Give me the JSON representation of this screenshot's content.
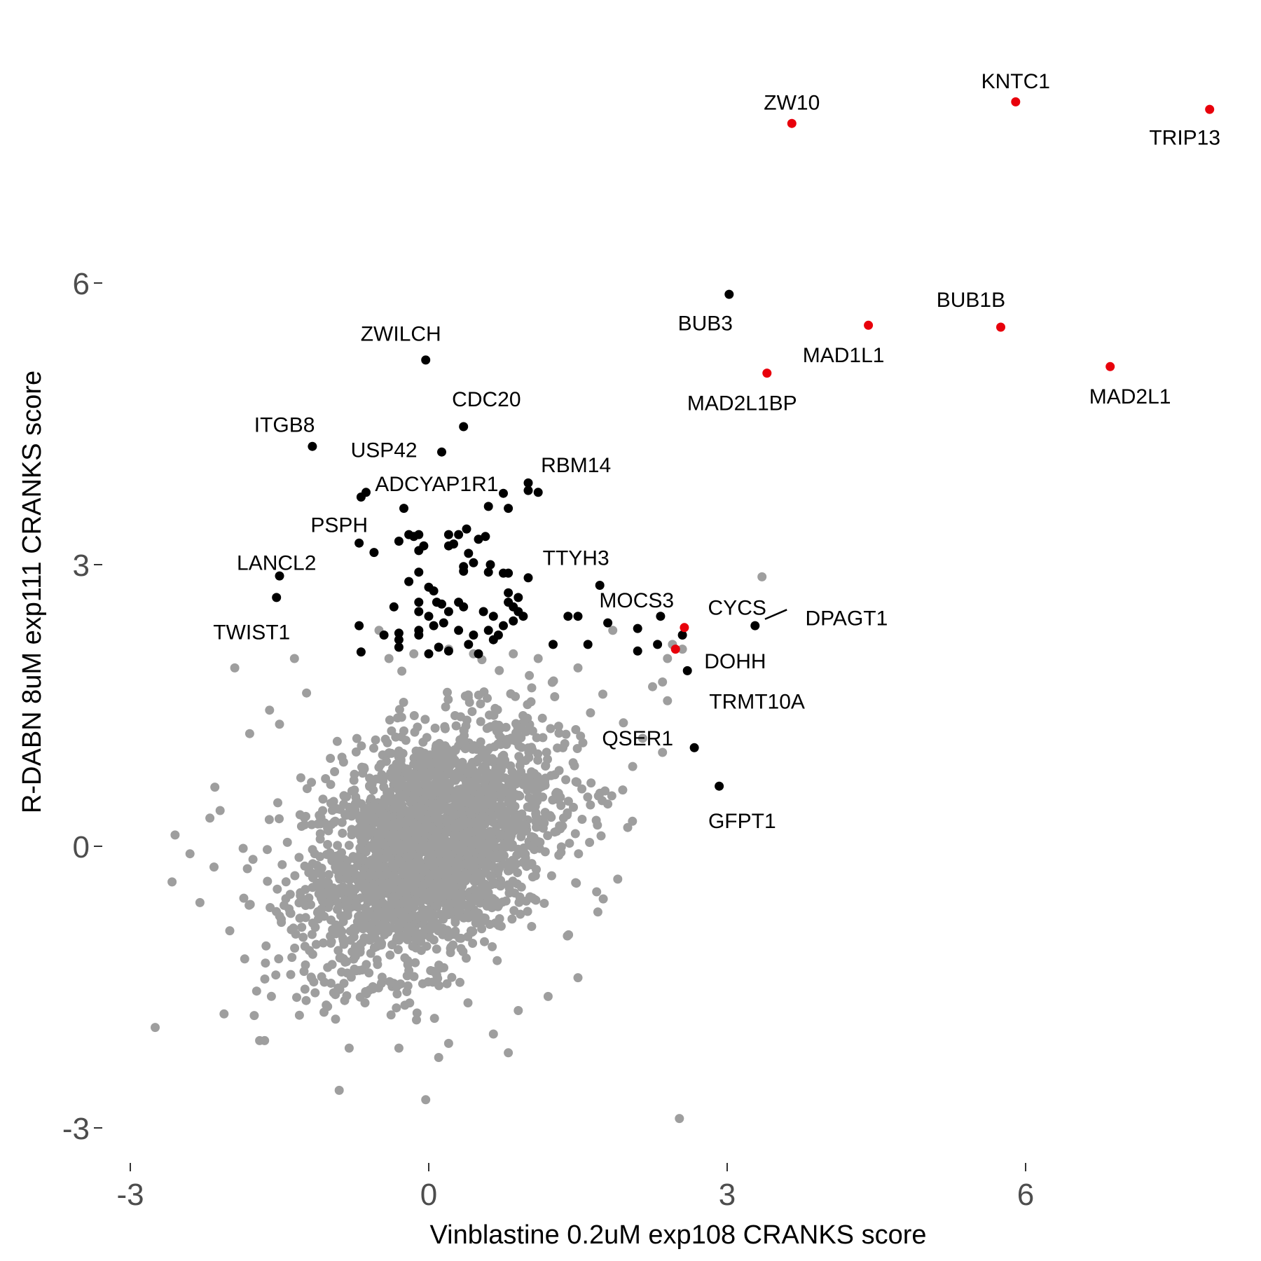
{
  "chart_data": {
    "type": "scatter",
    "title": "",
    "xlabel": "Vinblastine 0.2uM exp108 CRANKS score",
    "ylabel": "R-DABN 8uM exp111 CRANKS score",
    "xlim": [
      -3.3,
      7.8
    ],
    "ylim": [
      -3.4,
      8.1
    ],
    "x_ticks": [
      -3,
      0,
      3,
      6
    ],
    "y_ticks": [
      -3,
      0,
      3,
      6
    ],
    "grid": false,
    "legend": "none",
    "colors": {
      "background": "#ffffff",
      "tick_text": "#4d4d4d",
      "axis_text": "#000000"
    },
    "series": [
      {
        "color": "#9e9e9e",
        "cluster": {
          "count": 2600,
          "mean": [
            0.0,
            0.0
          ],
          "sd": [
            0.62,
            0.66
          ],
          "rho": 0.4
        },
        "points": [
          [
            3.35,
            2.87
          ],
          [
            -2.75,
            -1.93
          ],
          [
            -2.58,
            -0.38
          ],
          [
            -2.55,
            0.12
          ],
          [
            -2.4,
            -0.08
          ],
          [
            -2.2,
            0.3
          ],
          [
            -2.15,
            0.63
          ],
          [
            -1.95,
            1.9
          ],
          [
            -1.7,
            -2.07
          ],
          [
            -1.65,
            -2.07
          ],
          [
            -1.35,
            2.0
          ],
          [
            -1.3,
            -1.8
          ],
          [
            -0.9,
            -2.6
          ],
          [
            -0.8,
            -2.15
          ],
          [
            -0.3,
            -2.15
          ],
          [
            0.1,
            -2.25
          ],
          [
            -0.03,
            -2.7
          ],
          [
            0.8,
            -2.2
          ],
          [
            0.65,
            -2.0
          ],
          [
            0.2,
            -2.1
          ],
          [
            2.52,
            -2.9
          ],
          [
            1.75,
            1.62
          ],
          [
            1.85,
            2.3
          ],
          [
            2.25,
            1.7
          ],
          [
            2.35,
            1.75
          ],
          [
            2.4,
            2.0
          ],
          [
            2.45,
            2.15
          ],
          [
            2.55,
            2.1
          ],
          [
            2.4,
            1.55
          ],
          [
            2.35,
            1.0
          ],
          [
            2.15,
            1.15
          ],
          [
            2.05,
            0.85
          ],
          [
            -0.4,
            2.0
          ],
          [
            -0.15,
            2.05
          ],
          [
            0.2,
            2.1
          ],
          [
            0.45,
            2.05
          ],
          [
            0.85,
            2.05
          ],
          [
            1.1,
            2.0
          ],
          [
            1.5,
            1.9
          ],
          [
            -0.5,
            2.3
          ],
          [
            1.8,
            0.45
          ],
          [
            1.95,
            0.6
          ],
          [
            -1.5,
            1.3
          ],
          [
            -1.8,
            1.2
          ],
          [
            -1.6,
            1.45
          ],
          [
            2.0,
            0.2
          ],
          [
            1.9,
            -0.35
          ],
          [
            1.7,
            -0.7
          ],
          [
            -2.3,
            -0.6
          ],
          [
            -2.0,
            -0.9
          ],
          [
            -1.85,
            -1.2
          ],
          [
            1.5,
            -1.4
          ],
          [
            1.2,
            -1.6
          ],
          [
            0.9,
            -1.75
          ]
        ]
      },
      {
        "color": "#000000",
        "points": [
          [
            -0.03,
            5.18
          ],
          [
            3.02,
            5.88
          ],
          [
            0.35,
            4.47
          ],
          [
            0.13,
            4.2
          ],
          [
            -1.17,
            4.26
          ],
          [
            -0.63,
            3.77
          ],
          [
            -0.68,
            3.72
          ],
          [
            -0.25,
            3.6
          ],
          [
            1.0,
            3.87
          ],
          [
            1.0,
            3.79
          ],
          [
            1.1,
            3.77
          ],
          [
            0.75,
            3.76
          ],
          [
            0.8,
            3.6
          ],
          [
            0.6,
            3.62
          ],
          [
            -0.7,
            3.23
          ],
          [
            -0.55,
            3.13
          ],
          [
            -1.5,
            2.88
          ],
          [
            -1.53,
            2.65
          ],
          [
            -0.7,
            2.35
          ],
          [
            -0.68,
            2.07
          ],
          [
            -0.3,
            3.25
          ],
          [
            -0.2,
            3.32
          ],
          [
            -0.1,
            3.32
          ],
          [
            -0.15,
            3.3
          ],
          [
            0.2,
            3.32
          ],
          [
            0.3,
            3.32
          ],
          [
            0.38,
            3.38
          ],
          [
            0.25,
            3.22
          ],
          [
            0.5,
            3.27
          ],
          [
            0.4,
            3.12
          ],
          [
            -0.05,
            3.2
          ],
          [
            0.2,
            3.2
          ],
          [
            -0.1,
            3.15
          ],
          [
            0.57,
            3.3
          ],
          [
            0.35,
            2.98
          ],
          [
            0.45,
            3.02
          ],
          [
            0.6,
            2.92
          ],
          [
            0.75,
            2.91
          ],
          [
            0.8,
            2.91
          ],
          [
            0.62,
            3.0
          ],
          [
            -0.1,
            2.92
          ],
          [
            0.35,
            2.93
          ],
          [
            1.0,
            2.86
          ],
          [
            0.0,
            2.76
          ],
          [
            -0.2,
            2.82
          ],
          [
            0.05,
            2.72
          ],
          [
            -0.35,
            2.55
          ],
          [
            -0.1,
            2.6
          ],
          [
            0.08,
            2.6
          ],
          [
            0.13,
            2.58
          ],
          [
            0.3,
            2.6
          ],
          [
            0.35,
            2.55
          ],
          [
            0.2,
            2.5
          ],
          [
            0.0,
            2.45
          ],
          [
            -0.1,
            2.5
          ],
          [
            0.55,
            2.5
          ],
          [
            0.65,
            2.45
          ],
          [
            0.8,
            2.6
          ],
          [
            0.85,
            2.55
          ],
          [
            0.9,
            2.5
          ],
          [
            0.95,
            2.45
          ],
          [
            0.9,
            2.65
          ],
          [
            0.8,
            2.7
          ],
          [
            0.15,
            2.38
          ],
          [
            0.05,
            2.35
          ],
          [
            -0.1,
            2.3
          ],
          [
            0.3,
            2.3
          ],
          [
            0.6,
            2.3
          ],
          [
            0.75,
            2.35
          ],
          [
            0.85,
            2.4
          ],
          [
            -0.3,
            2.27
          ],
          [
            0.45,
            2.25
          ],
          [
            0.7,
            2.25
          ],
          [
            -0.45,
            2.25
          ],
          [
            -0.3,
            2.2
          ],
          [
            -0.1,
            2.25
          ],
          [
            -0.3,
            2.12
          ],
          [
            0.1,
            2.12
          ],
          [
            0.0,
            2.05
          ],
          [
            0.2,
            2.08
          ],
          [
            0.5,
            2.05
          ],
          [
            0.4,
            2.15
          ],
          [
            0.65,
            2.2
          ],
          [
            1.25,
            2.15
          ],
          [
            1.4,
            2.45
          ],
          [
            1.5,
            2.45
          ],
          [
            1.8,
            2.38
          ],
          [
            1.72,
            2.78
          ],
          [
            1.6,
            2.15
          ],
          [
            2.1,
            2.32
          ],
          [
            2.33,
            2.45
          ],
          [
            2.55,
            2.25
          ],
          [
            2.3,
            2.15
          ],
          [
            2.1,
            2.08
          ],
          [
            3.28,
            2.35
          ],
          [
            2.6,
            1.87
          ],
          [
            2.67,
            1.05
          ],
          [
            2.92,
            0.64
          ]
        ]
      },
      {
        "color": "#e8000b",
        "points": [
          [
            3.65,
            7.7
          ],
          [
            5.9,
            7.93
          ],
          [
            7.85,
            7.85
          ],
          [
            4.42,
            5.55
          ],
          [
            5.75,
            5.53
          ],
          [
            3.4,
            5.04
          ],
          [
            6.85,
            5.11
          ],
          [
            2.57,
            2.33
          ],
          [
            2.48,
            2.1
          ]
        ]
      }
    ],
    "annotations": [
      {
        "text": "ZW10",
        "x": 3.65,
        "y": 7.92,
        "anchor": "middle"
      },
      {
        "text": "KNTC1",
        "x": 5.9,
        "y": 8.15,
        "anchor": "middle"
      },
      {
        "text": "TRIP13",
        "x": 7.6,
        "y": 7.55,
        "anchor": "middle"
      },
      {
        "text": "BUB3",
        "x": 2.78,
        "y": 5.57,
        "anchor": "middle"
      },
      {
        "text": "BUB1B",
        "x": 5.45,
        "y": 5.82,
        "anchor": "middle"
      },
      {
        "text": "MAD1L1",
        "x": 4.17,
        "y": 5.23,
        "anchor": "middle"
      },
      {
        "text": "MAD2L1BP",
        "x": 3.15,
        "y": 4.72,
        "anchor": "middle"
      },
      {
        "text": "MAD2L1",
        "x": 7.05,
        "y": 4.79,
        "anchor": "middle"
      },
      {
        "text": "ZWILCH",
        "x": -0.28,
        "y": 5.46,
        "anchor": "middle"
      },
      {
        "text": "CDC20",
        "x": 0.58,
        "y": 4.76,
        "anchor": "middle"
      },
      {
        "text": "ITGB8",
        "x": -1.45,
        "y": 4.49,
        "anchor": "middle"
      },
      {
        "text": "USP42",
        "x": -0.45,
        "y": 4.22,
        "anchor": "middle"
      },
      {
        "text": "RBM14",
        "x": 1.48,
        "y": 4.06,
        "anchor": "middle"
      },
      {
        "text": "ADCYAP1R1",
        "x": 0.08,
        "y": 3.86,
        "anchor": "middle"
      },
      {
        "text": "PSPH",
        "x": -0.9,
        "y": 3.42,
        "anchor": "middle"
      },
      {
        "text": "TTYH3",
        "x": 1.48,
        "y": 3.07,
        "anchor": "middle"
      },
      {
        "text": "LANCL2",
        "x": -1.53,
        "y": 3.02,
        "anchor": "middle"
      },
      {
        "text": "MOCS3",
        "x": 2.09,
        "y": 2.62,
        "anchor": "middle"
      },
      {
        "text": "CYCS",
        "x": 3.1,
        "y": 2.54,
        "anchor": "middle"
      },
      {
        "text": "DPAGT1",
        "x": 4.2,
        "y": 2.43,
        "anchor": "middle"
      },
      {
        "text": "TWIST1",
        "x": -1.78,
        "y": 2.28,
        "anchor": "middle"
      },
      {
        "text": "DOHH",
        "x": 3.08,
        "y": 1.97,
        "anchor": "middle"
      },
      {
        "text": "TRMT10A",
        "x": 3.3,
        "y": 1.54,
        "anchor": "middle"
      },
      {
        "text": "QSER1",
        "x": 2.1,
        "y": 1.15,
        "anchor": "middle"
      },
      {
        "text": "GFPT1",
        "x": 3.15,
        "y": 0.27,
        "anchor": "middle"
      }
    ],
    "connectors": [
      {
        "from": [
          3.38,
          2.42
        ],
        "to": [
          3.6,
          2.52
        ]
      }
    ]
  }
}
